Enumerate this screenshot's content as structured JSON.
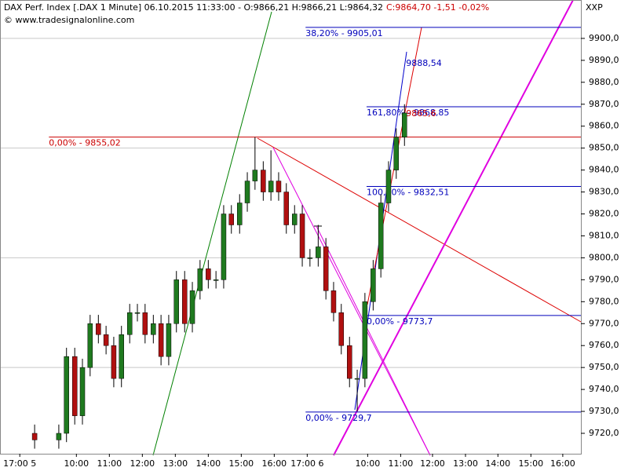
{
  "chart_data": {
    "type": "candlestick",
    "title": "DAX Perf. Index [.DAX  1 Minute] 06.10.2015 11:33:00 - O:9866,21 H:9866,21 L:9864,32",
    "title_close": "C:9864,70 -1,51 -0,02%",
    "copyright": "© www.tradesignalonline.com",
    "corner_label": "XXP",
    "up_color": "#1f7a1f",
    "down_color": "#b01010",
    "x": [
      63,
      107,
      121,
      136,
      150,
      164,
      179,
      193,
      207,
      221,
      236,
      250,
      264,
      279,
      293,
      307,
      321,
      336,
      350,
      364,
      379,
      393,
      407,
      421,
      436,
      450,
      464,
      479,
      493,
      507,
      521,
      536,
      550,
      564,
      579,
      593,
      607,
      621,
      636,
      650,
      664,
      679,
      693,
      707,
      721,
      736
    ],
    "open": [
      9720,
      9717,
      9720,
      9755,
      9728,
      9750,
      9770,
      9765,
      9760,
      9745,
      9765,
      9775,
      9775,
      9765,
      9770,
      9755,
      9770,
      9790,
      9770,
      9785,
      9795,
      9790,
      9790,
      9820,
      9815,
      9825,
      9835,
      9840,
      9830,
      9835,
      9830,
      9815,
      9820,
      9800,
      9800,
      9805,
      9785,
      9775,
      9760,
      9745,
      9745,
      9780,
      9795,
      9825,
      9840,
      9855
    ],
    "high": [
      9724,
      9724,
      9759,
      9759,
      9754,
      9774,
      9774,
      9769,
      9764,
      9769,
      9779,
      9779,
      9779,
      9774,
      9774,
      9774,
      9794,
      9794,
      9789,
      9799,
      9799,
      9794,
      9824,
      9824,
      9829,
      9839,
      9855,
      9844,
      9849,
      9839,
      9834,
      9824,
      9824,
      9804,
      9815,
      9809,
      9789,
      9779,
      9764,
      9749,
      9784,
      9799,
      9829,
      9844,
      9859,
      9870
    ],
    "low": [
      9713,
      9713,
      9716,
      9724,
      9724,
      9746,
      9761,
      9756,
      9741,
      9741,
      9761,
      9771,
      9761,
      9761,
      9751,
      9751,
      9766,
      9766,
      9766,
      9781,
      9786,
      9786,
      9786,
      9811,
      9811,
      9821,
      9831,
      9826,
      9826,
      9826,
      9811,
      9811,
      9796,
      9796,
      9796,
      9781,
      9771,
      9756,
      9741,
      9730,
      9741,
      9776,
      9791,
      9821,
      9836,
      9851
    ],
    "close": [
      9717,
      9720,
      9755,
      9728,
      9750,
      9770,
      9765,
      9760,
      9745,
      9765,
      9775,
      9775,
      9765,
      9770,
      9755,
      9770,
      9790,
      9770,
      9785,
      9795,
      9790,
      9790,
      9820,
      9815,
      9825,
      9835,
      9840,
      9830,
      9835,
      9830,
      9815,
      9820,
      9800,
      9800,
      9805,
      9785,
      9775,
      9760,
      9745,
      9745,
      9780,
      9795,
      9825,
      9840,
      9855,
      9866
    ],
    "xlim": [
      0,
      1057
    ],
    "ylim": [
      9710.7,
      9917.5
    ],
    "xticks": [
      {
        "value": 36,
        "label": "17:00 5"
      },
      {
        "value": 139,
        "label": "10:00"
      },
      {
        "value": 199,
        "label": "11:00"
      },
      {
        "value": 259,
        "label": "12:00"
      },
      {
        "value": 319,
        "label": "13:00"
      },
      {
        "value": 379,
        "label": "14:00"
      },
      {
        "value": 439,
        "label": "15:00"
      },
      {
        "value": 499,
        "label": "16:00"
      },
      {
        "value": 559,
        "label": "17:00 6"
      },
      {
        "value": 669,
        "label": "10:00"
      },
      {
        "value": 729,
        "label": "11:00"
      },
      {
        "value": 787,
        "label": "12:00"
      },
      {
        "value": 847,
        "label": "13:00"
      },
      {
        "value": 906,
        "label": "14:00"
      },
      {
        "value": 966,
        "label": "15:00"
      },
      {
        "value": 1024,
        "label": "16:00"
      }
    ],
    "yticks": [
      {
        "value": 9720,
        "label": "9720,0"
      },
      {
        "value": 9730,
        "label": "9730,0"
      },
      {
        "value": 9740,
        "label": "9740,0"
      },
      {
        "value": 9750,
        "label": "9750,0"
      },
      {
        "value": 9760,
        "label": "9760,0"
      },
      {
        "value": 9770,
        "label": "9770,0"
      },
      {
        "value": 9780,
        "label": "9780,0"
      },
      {
        "value": 9790,
        "label": "9790,0"
      },
      {
        "value": 9800,
        "label": "9800,0"
      },
      {
        "value": 9810,
        "label": "9810,0"
      },
      {
        "value": 9820,
        "label": "9820,0"
      },
      {
        "value": 9830,
        "label": "9830,0"
      },
      {
        "value": 9840,
        "label": "9840,0"
      },
      {
        "value": 9850,
        "label": "9850,0"
      },
      {
        "value": 9860,
        "label": "9860,0"
      },
      {
        "value": 9870,
        "label": "9870,0"
      },
      {
        "value": 9880,
        "label": "9880,0"
      },
      {
        "value": 9890,
        "label": "9890,0"
      },
      {
        "value": 9900,
        "label": "9900,0"
      }
    ],
    "levels": [
      {
        "label": "38,20% - 9905,01",
        "value": 9905.01,
        "from": 556,
        "color": "#0000bb"
      },
      {
        "label": "161,80% - 9868,85",
        "value": 9868.85,
        "from": 667,
        "color": "#0000bb"
      },
      {
        "label": "100,00% - 9832,51",
        "value": 9832.51,
        "from": 667,
        "color": "#0000bb"
      },
      {
        "label": "0,00% - 9773,7",
        "value": 9773.7,
        "from": 667,
        "color": "#0000bb"
      },
      {
        "label": "0,00% - 9729,7",
        "value": 9729.7,
        "from": 556,
        "color": "#0000bb"
      },
      {
        "label": "0,00% - 9855,02",
        "value": 9855.02,
        "from": 89,
        "color": "#cc0000"
      }
    ],
    "price_notes": [
      {
        "label": "9888,54",
        "value": 9888.54,
        "at": 736,
        "color": "#0000bb"
      },
      {
        "label": "9865,6",
        "value": 9865.6,
        "at": 736,
        "color": "#cc0000"
      }
    ]
  }
}
